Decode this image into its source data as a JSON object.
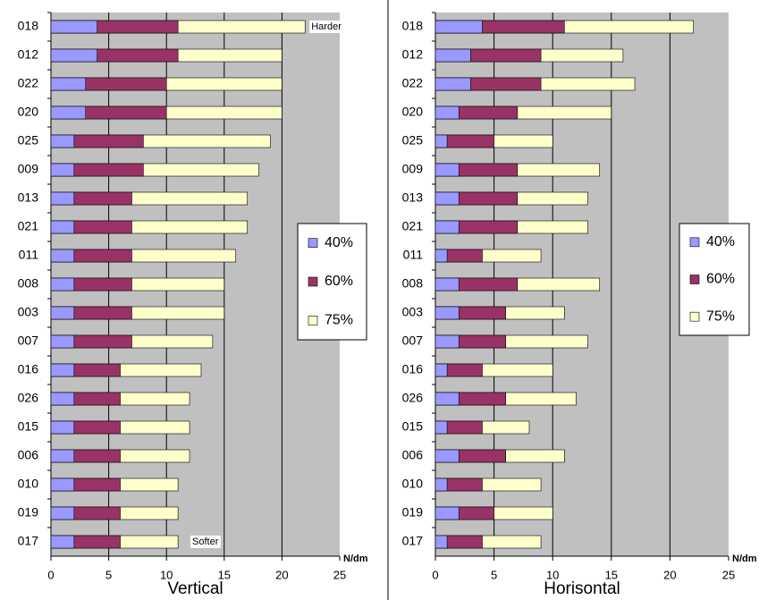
{
  "chart_data": [
    {
      "type": "bar",
      "orientation": "horizontal",
      "title": "Vertical",
      "x_label": "N/dm",
      "categories": [
        "018",
        "012",
        "022",
        "020",
        "025",
        "009",
        "013",
        "021",
        "011",
        "008",
        "003",
        "007",
        "016",
        "026",
        "015",
        "006",
        "010",
        "019",
        "017"
      ],
      "series": [
        {
          "name": "40%",
          "color": "#9999ff",
          "values": [
            4,
            4,
            3,
            3,
            2,
            2,
            2,
            2,
            2,
            2,
            2,
            2,
            2,
            2,
            2,
            2,
            2,
            2,
            2
          ]
        },
        {
          "name": "60%",
          "color": "#993366",
          "values": [
            11,
            11,
            10,
            10,
            8,
            8,
            7,
            7,
            7,
            7,
            7,
            7,
            6,
            6,
            6,
            6,
            6,
            6,
            6
          ]
        },
        {
          "name": "75%",
          "color": "#ffffcc",
          "values": [
            22,
            20,
            20,
            20,
            19,
            18,
            17,
            17,
            16,
            15,
            15,
            14,
            13,
            12,
            12,
            12,
            11,
            11,
            11
          ]
        }
      ],
      "xlim": [
        0,
        25
      ],
      "xticks": [
        0,
        5,
        10,
        15,
        20,
        25
      ],
      "grid": true,
      "legend": "right",
      "annotations": [
        {
          "text": "Harder"
        },
        {
          "text": "Softer"
        }
      ]
    },
    {
      "type": "bar",
      "orientation": "horizontal",
      "title": "Horisontal",
      "x_label": "N/dm",
      "categories": [
        "018",
        "012",
        "022",
        "020",
        "025",
        "009",
        "013",
        "021",
        "011",
        "008",
        "003",
        "007",
        "016",
        "026",
        "015",
        "006",
        "010",
        "019",
        "017"
      ],
      "series": [
        {
          "name": "40%",
          "color": "#9999ff",
          "values": [
            4,
            3,
            3,
            2,
            1,
            2,
            2,
            2,
            1,
            2,
            2,
            2,
            1,
            2,
            1,
            2,
            1,
            2,
            1
          ]
        },
        {
          "name": "60%",
          "color": "#993366",
          "values": [
            11,
            9,
            9,
            7,
            5,
            7,
            7,
            7,
            4,
            7,
            6,
            6,
            4,
            6,
            4,
            6,
            4,
            5,
            4
          ]
        },
        {
          "name": "75%",
          "color": "#ffffcc",
          "values": [
            22,
            16,
            17,
            15,
            10,
            14,
            13,
            13,
            9,
            14,
            11,
            13,
            10,
            12,
            8,
            11,
            9,
            10,
            9
          ]
        }
      ],
      "xlim": [
        0,
        25
      ],
      "xticks": [
        0,
        5,
        10,
        15,
        20,
        25
      ],
      "grid": true,
      "legend": "right"
    }
  ]
}
